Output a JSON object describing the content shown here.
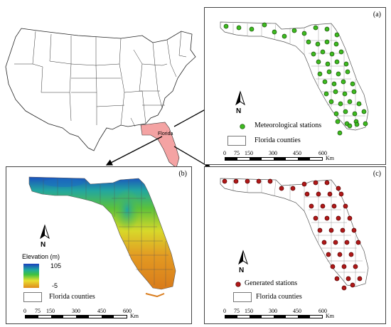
{
  "usa_map": {
    "state_label": "Florida",
    "highlight_color": "#f4a3a3"
  },
  "panel_a": {
    "tag": "(a)",
    "legend_stations": "Meteorological stations",
    "legend_counties": "Florida counties",
    "station_color": "#3dbb1f",
    "scale_ticks": [
      "0",
      "75",
      "150",
      "300",
      "450",
      "600"
    ],
    "scale_unit": "Km",
    "north": "N"
  },
  "panel_b": {
    "tag": "(b)",
    "elevation_title": "Elevation (m)",
    "elevation_max": "105",
    "elevation_min": "-5",
    "legend_counties": "Florida counties",
    "scale_ticks": [
      "0",
      "75",
      "150",
      "300",
      "450",
      "600"
    ],
    "scale_unit": "Km",
    "north": "N"
  },
  "panel_c": {
    "tag": "(c)",
    "legend_stations": "Generated stations",
    "legend_counties": "Florida counties",
    "station_color": "#b01818",
    "scale_ticks": [
      "0",
      "75",
      "150",
      "300",
      "450",
      "600"
    ],
    "scale_unit": "Km",
    "north": "N"
  }
}
